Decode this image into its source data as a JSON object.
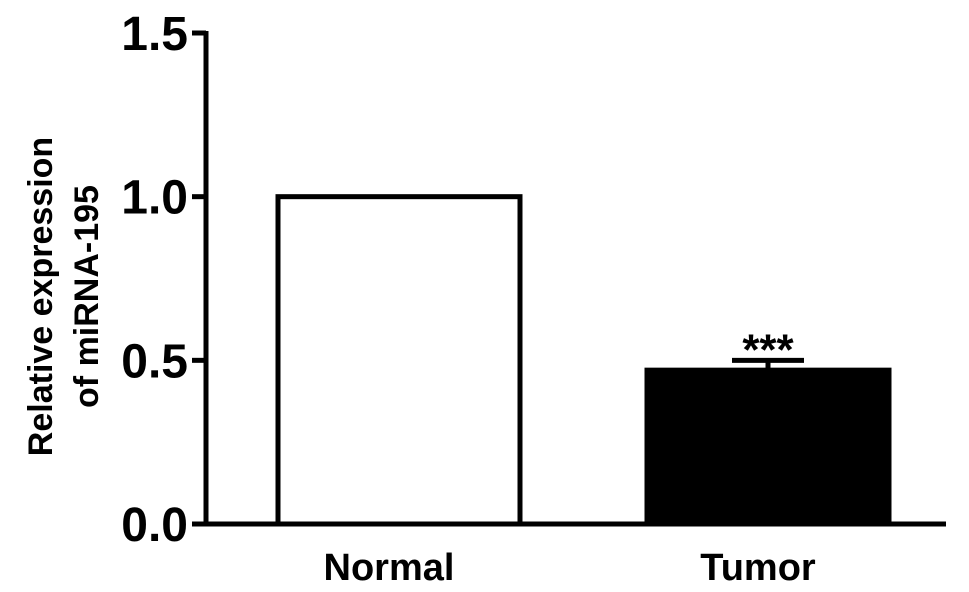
{
  "chart_data": {
    "type": "bar",
    "categories": [
      "Normal",
      "Tumor"
    ],
    "values": [
      1.0,
      0.47
    ],
    "errors": [
      0,
      0.03
    ],
    "bar_colors": [
      "#ffffff",
      "#000000"
    ],
    "annotations": [
      null,
      "***"
    ],
    "ylabel_lines": [
      "Relative expression",
      "of miRNA-195"
    ],
    "ylim": [
      0,
      1.5
    ],
    "yticks": [
      0.0,
      0.5,
      1.0,
      1.5
    ],
    "ytick_labels": [
      "0.0",
      "0.5",
      "1.0",
      "1.5"
    ],
    "grid": false,
    "legend": "none"
  }
}
